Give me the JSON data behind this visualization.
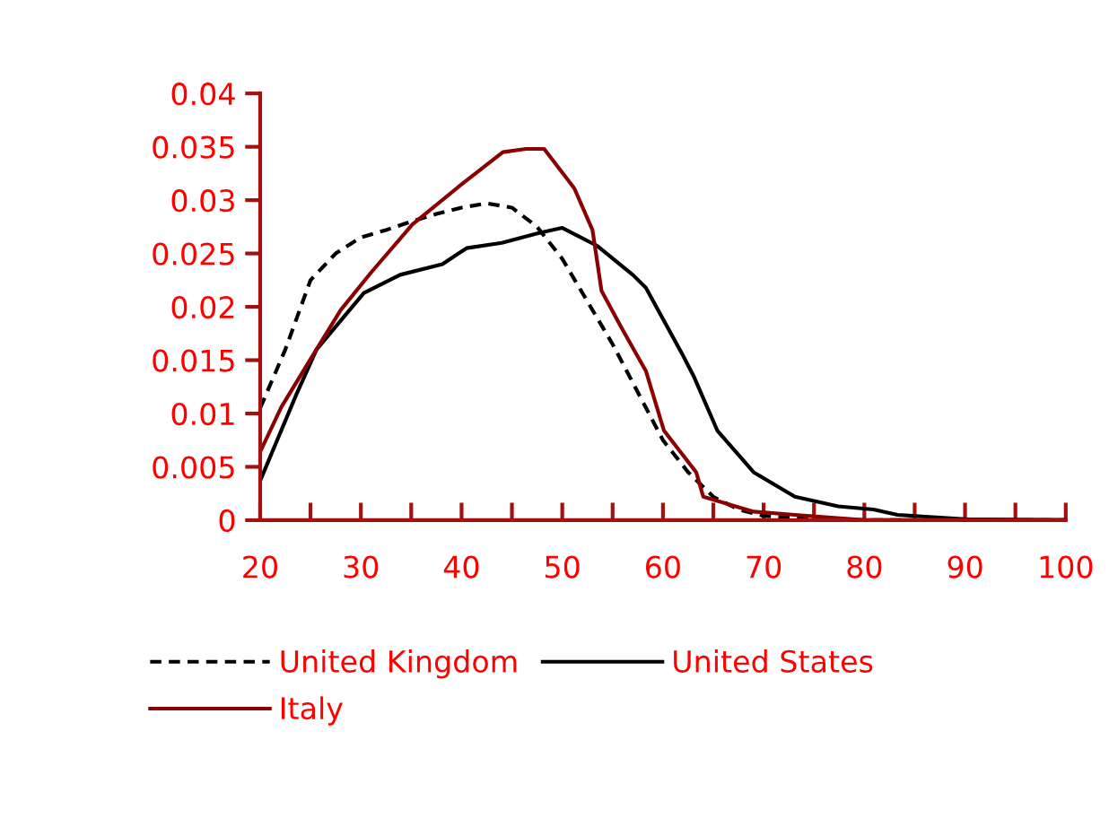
{
  "chart_data": {
    "type": "line",
    "xlim": [
      20,
      100
    ],
    "xticks": [
      20,
      {
        "value": 25,
        "label": null
      },
      30,
      {
        "value": 35,
        "label": null
      },
      40,
      {
        "value": 45,
        "label": null
      },
      50,
      {
        "value": 55,
        "label": null
      },
      60,
      {
        "value": 65,
        "label": null
      },
      70,
      {
        "value": 75,
        "label": null
      },
      80,
      {
        "value": 85,
        "label": null
      },
      90,
      {
        "value": 95,
        "label": null
      },
      100
    ],
    "ylim": [
      0,
      0.04
    ],
    "yticks": [
      0,
      0.005,
      0.01,
      0.015,
      0.02,
      0.025,
      0.03,
      0.035,
      0.04
    ],
    "grid": false,
    "legend": "bottom",
    "marker": "none",
    "series": [
      {
        "name": "United Kingdom",
        "color": "#000000",
        "line_style": "dashed",
        "x": [
          20,
          22.5,
          25,
          27.5,
          30,
          32.5,
          35,
          37.5,
          40,
          42.5,
          45,
          47.5,
          50,
          52.5,
          55,
          57.5,
          60,
          62.5,
          65,
          67.5,
          70,
          75,
          80,
          100
        ],
        "values": [
          0.0105,
          0.016,
          0.0225,
          0.025,
          0.0265,
          0.0272,
          0.028,
          0.0287,
          0.0293,
          0.0297,
          0.0293,
          0.0275,
          0.0245,
          0.0205,
          0.0165,
          0.012,
          0.0075,
          0.0045,
          0.0022,
          0.001,
          0.0004,
          0.0001,
          0,
          0
        ]
      },
      {
        "name": "United States",
        "color": "#000000",
        "line_style": "solid",
        "x": [
          20,
          23.6,
          25.6,
          30.3,
          33.9,
          38.1,
          40.5,
          44,
          47.6,
          50,
          53.5,
          57,
          58.3,
          61.9,
          63.1,
          65.4,
          69,
          73.1,
          77.4,
          80.9,
          83.3,
          90,
          100
        ],
        "values": [
          0.0037,
          0.0118,
          0.016,
          0.0213,
          0.023,
          0.024,
          0.0255,
          0.026,
          0.0269,
          0.0274,
          0.0257,
          0.023,
          0.0218,
          0.0156,
          0.0134,
          0.0084,
          0.0045,
          0.0022,
          0.0013,
          0.001,
          0.0005,
          0.0001,
          0
        ]
      },
      {
        "name": "Italy",
        "color": "#8b0000",
        "line_style": "solid",
        "x": [
          20,
          22.1,
          25,
          28,
          31,
          35.1,
          39.9,
          44.1,
          46.4,
          48.2,
          51.2,
          53,
          53.9,
          55.9,
          58.3,
          60.1,
          61.9,
          63.3,
          64,
          69,
          73.1,
          80,
          100
        ],
        "values": [
          0.0064,
          0.0106,
          0.0151,
          0.0197,
          0.0232,
          0.0277,
          0.0314,
          0.0345,
          0.0348,
          0.0348,
          0.0311,
          0.0272,
          0.0215,
          0.018,
          0.014,
          0.0084,
          0.0062,
          0.0045,
          0.0022,
          0.0008,
          0.0005,
          0,
          0
        ]
      }
    ]
  }
}
